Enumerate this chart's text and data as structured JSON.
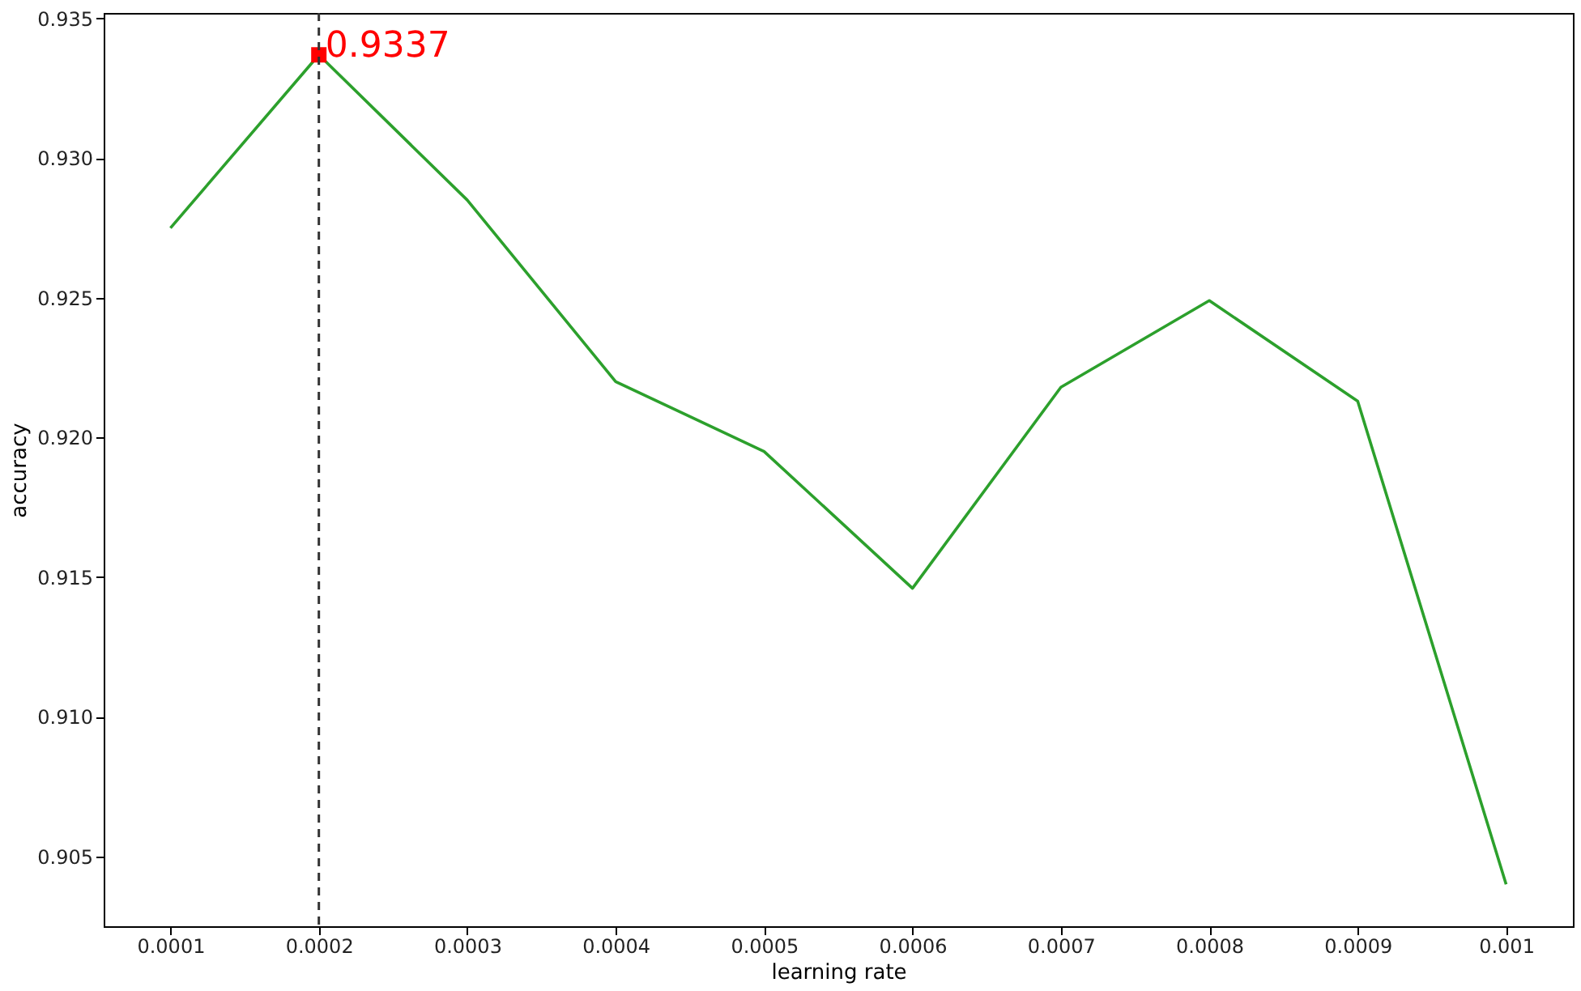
{
  "chart_data": {
    "type": "line",
    "xlabel": "learning rate",
    "ylabel": "accuracy",
    "x": [
      0.0001,
      0.0002,
      0.0003,
      0.0004,
      0.0005,
      0.0006,
      0.0007,
      0.0008,
      0.0009,
      0.001
    ],
    "series": [
      {
        "color": "#2ca02c",
        "values": [
          0.9275,
          0.9337,
          0.9285,
          0.922,
          0.9195,
          0.9146,
          0.9218,
          0.9249,
          0.9213,
          0.904
        ]
      },
      {
        "type": "scatter",
        "marker": "square",
        "color": "#ff0000",
        "x": [
          0.0002
        ],
        "values": [
          0.9337
        ]
      }
    ],
    "annotations": [
      {
        "text": "0.9337",
        "x": 0.0002,
        "y": 0.9337
      }
    ],
    "ref_lines": [
      {
        "axis": "x",
        "value": 0.0002,
        "color": "#333333",
        "line_style": "dashed"
      }
    ],
    "xlim": [
      5.5e-05,
      0.001045
    ],
    "ylim": [
      0.9025,
      0.9352
    ],
    "xticks": [
      0.0001,
      0.0002,
      0.0003,
      0.0004,
      0.0005,
      0.0006,
      0.0007,
      0.0008,
      0.0009,
      0.001
    ],
    "yticks": [
      {
        "value": 0.905,
        "label": "0.905"
      },
      {
        "value": 0.91,
        "label": "0.910"
      },
      {
        "value": 0.915,
        "label": "0.915"
      },
      {
        "value": 0.92,
        "label": "0.920"
      },
      {
        "value": 0.925,
        "label": "0.925"
      },
      {
        "value": 0.93,
        "label": "0.930"
      },
      {
        "value": 0.935,
        "label": "0.935"
      }
    ],
    "grid": false
  }
}
